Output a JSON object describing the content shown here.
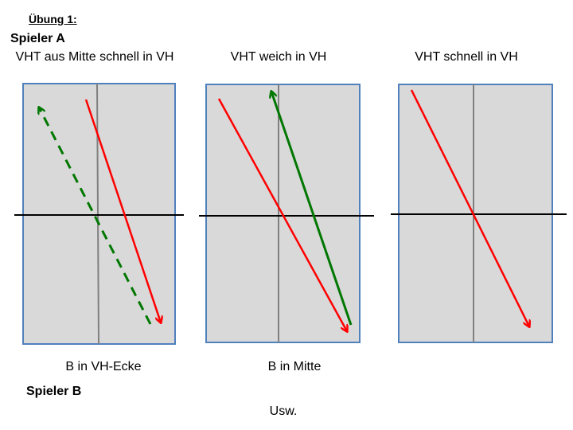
{
  "title": "Übung 1:",
  "player_a": "Spieler A",
  "player_b": "Spieler B",
  "panels": [
    {
      "caption": "VHT aus Mitte schnell in VH",
      "bottom": "B in VH-Ecke"
    },
    {
      "caption": "VHT weich in VH",
      "bottom": "B in Mitte"
    },
    {
      "caption": "VHT schnell in VH",
      "bottom": ""
    }
  ],
  "footer": "Usw.",
  "colors": {
    "court_fill": "#d9d9d9",
    "court_border": "#4f81bd",
    "center_line": "#808080",
    "net_line": "#000000",
    "red_arrow": "#ff0000",
    "green_arrow": "#007700"
  }
}
